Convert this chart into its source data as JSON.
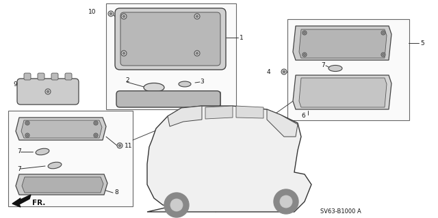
{
  "background_color": "#ffffff",
  "diagram_code": "SV63-B1000 A",
  "fr_label": "FR.",
  "line_color": "#333333",
  "part_colors": {
    "housing": "#c8c8c8",
    "lens": "#b0b0b0",
    "lens_clear": "#d8d8d8",
    "inner": "#a8a8a8"
  }
}
